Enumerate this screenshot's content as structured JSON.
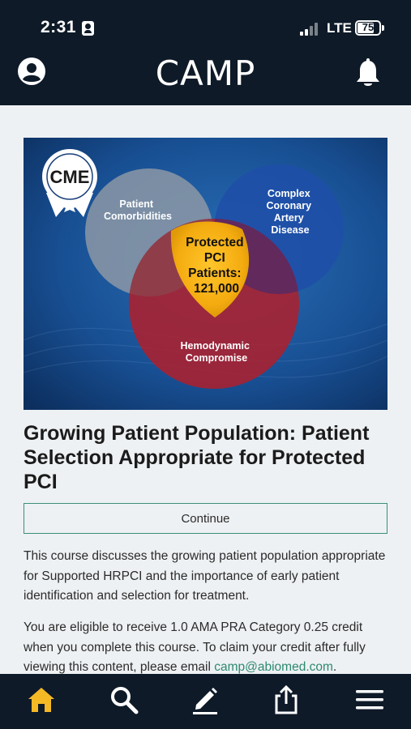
{
  "status_bar": {
    "time": "2:31",
    "network": "LTE",
    "battery": "75",
    "battery_level": 0.75
  },
  "header": {
    "logo": "CAMP",
    "left_icon": "account-circle-icon",
    "right_icon": "bell-icon"
  },
  "banner": {
    "badge": "CME",
    "circles": {
      "comorbidities": [
        "Patient",
        "Comorbidities"
      ],
      "cad": [
        "Complex",
        "Coronary",
        "Artery",
        "Disease"
      ],
      "hemodynamic": [
        "Hemodynamic",
        "Compromise"
      ]
    },
    "center": [
      "Protected",
      "PCI",
      "Patients:",
      "121,000"
    ]
  },
  "course": {
    "title": "Growing Patient Population: Patient Selection Appropriate for Protected PCI",
    "continue_label": "Continue",
    "description": "This course discusses the growing patient population appropriate for Supported HRPCI and the importance of early patient identification and selection for treatment.",
    "credit_text": "You are eligible to receive 1.0 AMA PRA Category 0.25 credit when you complete this course. To claim your credit after fully viewing this content, please email ",
    "email": "camp@abiomed.com",
    "credit_end": "."
  },
  "tab_bar": {
    "active_color": "#f5b926",
    "tabs": [
      {
        "name": "home",
        "icon": "home-icon"
      },
      {
        "name": "search",
        "icon": "search-icon"
      },
      {
        "name": "edit",
        "icon": "pencil-icon"
      },
      {
        "name": "share",
        "icon": "share-icon"
      },
      {
        "name": "menu",
        "icon": "hamburger-menu-icon"
      }
    ]
  }
}
